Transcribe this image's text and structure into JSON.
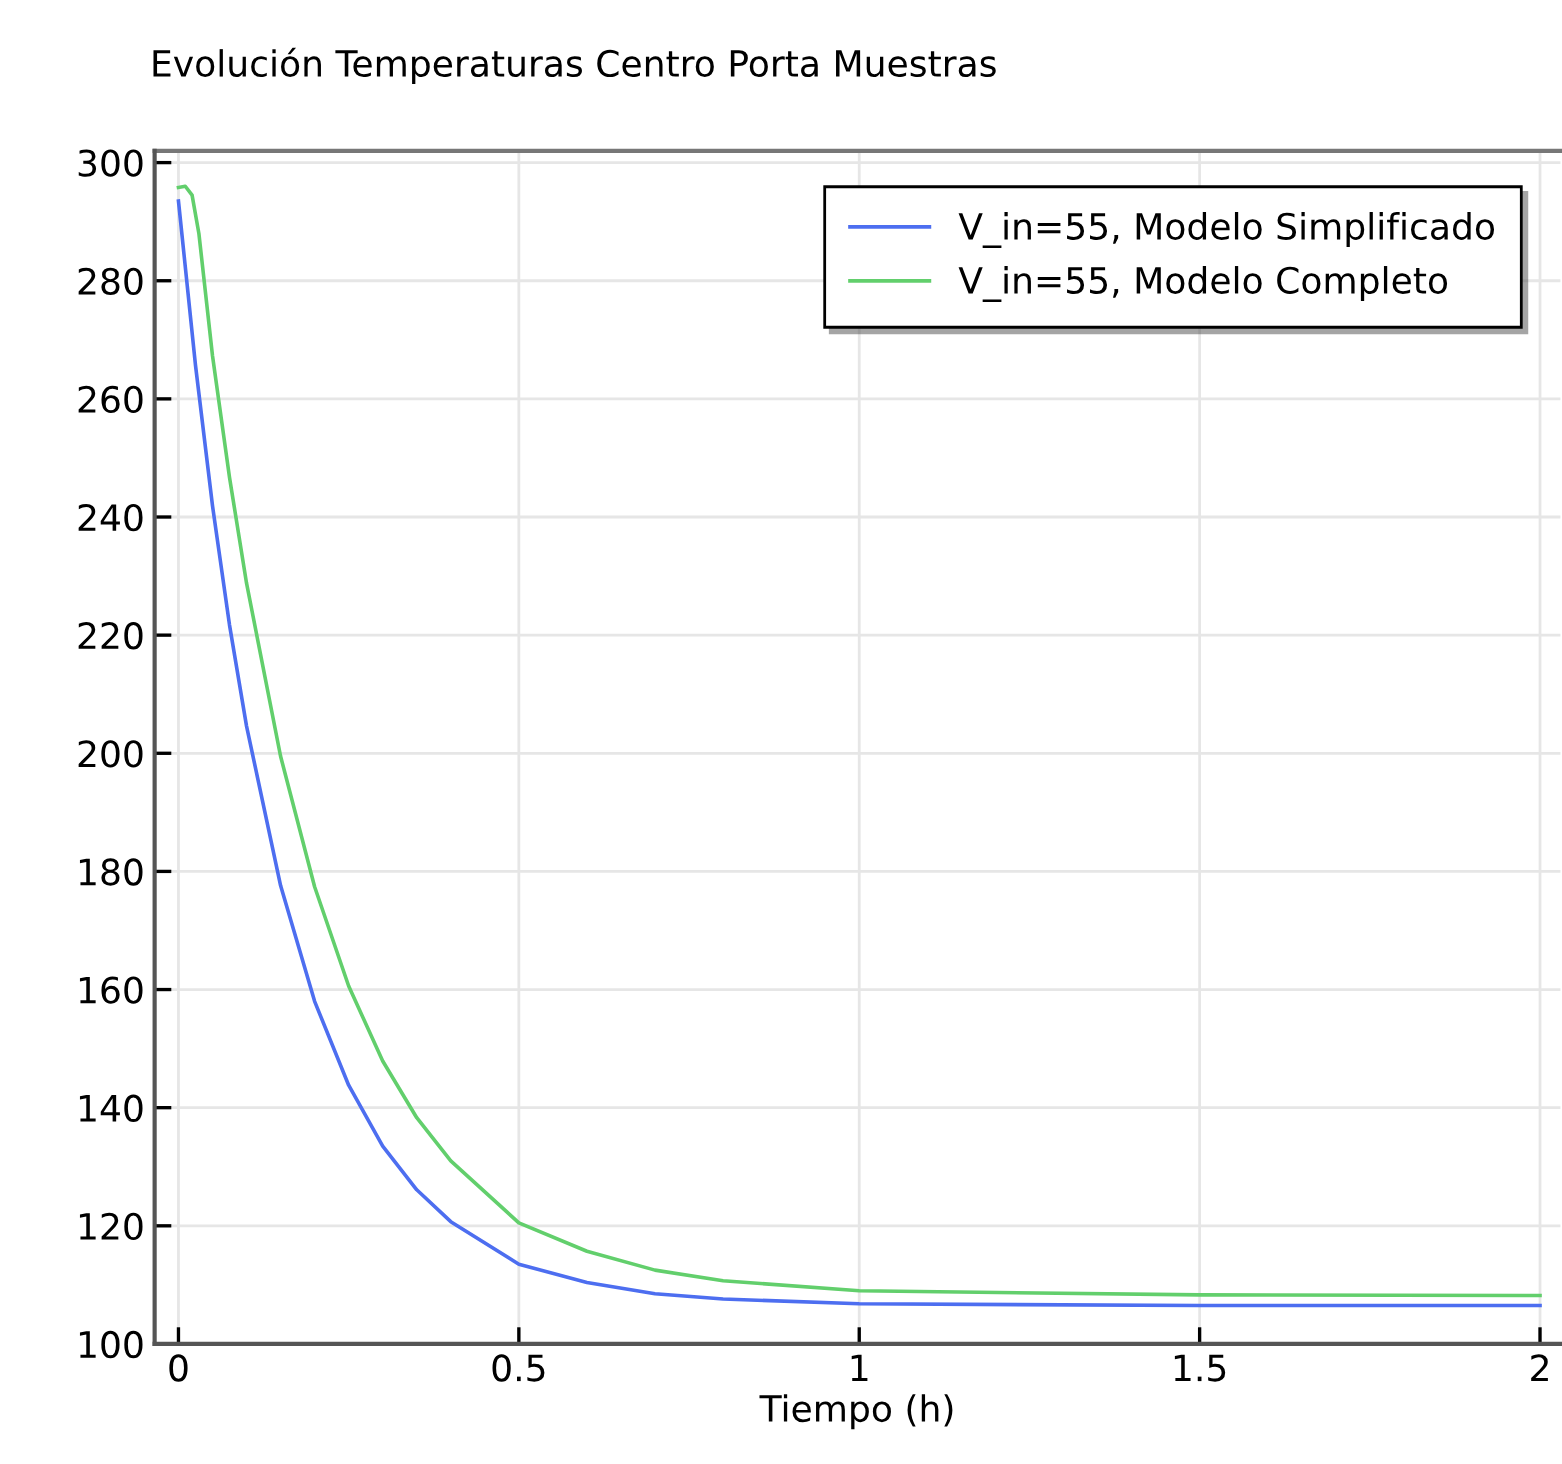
{
  "chart_data": {
    "type": "line",
    "title": "Evolución Temperaturas Centro Porta Muestras",
    "xlabel": "Tiempo (h)",
    "xlim": [
      -0.035,
      2.03
    ],
    "xticks": [
      0,
      0.5,
      1,
      1.5,
      2
    ],
    "ylim": [
      100,
      302
    ],
    "yticks": [
      100,
      120,
      140,
      160,
      180,
      200,
      220,
      240,
      260,
      280,
      300
    ],
    "grid": true,
    "legend": "top right",
    "line_style": "solid",
    "marker": "none",
    "series": [
      {
        "name": "V_in=55, Modelo Simplificado",
        "color": "#4d6ef0",
        "x": [
          0,
          0.025,
          0.05,
          0.075,
          0.1,
          0.15,
          0.2,
          0.25,
          0.3,
          0.35,
          0.4,
          0.5,
          0.6,
          0.7,
          0.8,
          1.0,
          1.5,
          2.0
        ],
        "values": [
          293.5,
          265.7,
          241.9,
          221.7,
          204.6,
          177.6,
          158,
          143.8,
          133.5,
          126.1,
          120.7,
          113.5,
          110.4,
          108.5,
          107.6,
          106.8,
          106.5,
          106.5
        ]
      },
      {
        "name": "V_in=55, Modelo Completo",
        "color": "#62cf6c",
        "x": [
          0,
          0.01,
          0.02,
          0.03,
          0.05,
          0.075,
          0.1,
          0.15,
          0.2,
          0.25,
          0.3,
          0.35,
          0.4,
          0.5,
          0.6,
          0.7,
          0.8,
          1.0,
          1.5,
          2.0
        ],
        "values": [
          295.8,
          296,
          294.5,
          288,
          267.3,
          246.7,
          228.8,
          199.5,
          177.4,
          160.6,
          147.9,
          138.3,
          131,
          120.5,
          115.7,
          112.5,
          110.7,
          109,
          108.3,
          108.2
        ]
      }
    ]
  }
}
